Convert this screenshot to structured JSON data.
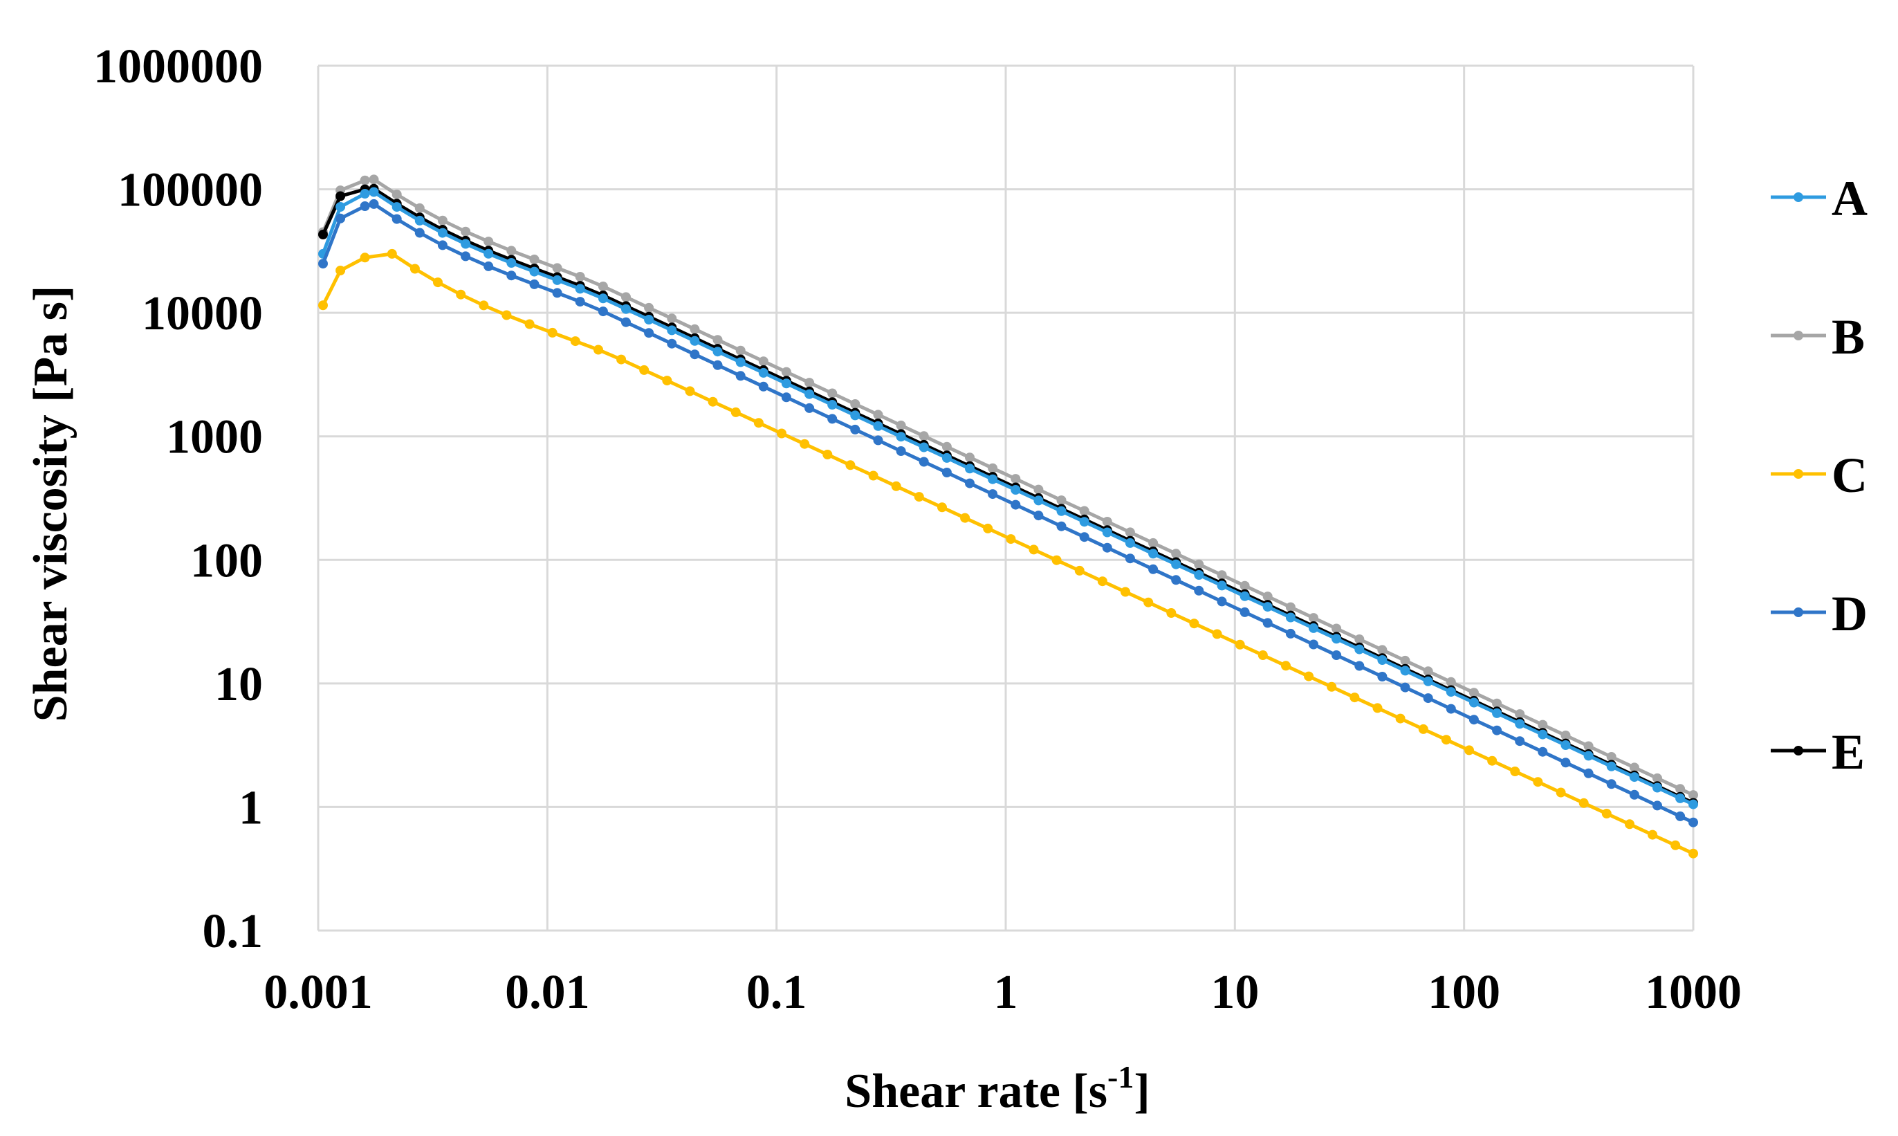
{
  "chart_data": {
    "type": "line",
    "title": "",
    "xlabel": "Shear rate [s",
    "xlabel_sup": "-1",
    "xlabel_suffix": "]",
    "ylabel": "Shear viscosity [Pa s]",
    "x_scale": "log",
    "y_scale": "log",
    "xlim": [
      0.001,
      1000
    ],
    "ylim": [
      0.1,
      1000000
    ],
    "grid": true,
    "legend_position": "right",
    "x_ticks": [
      {
        "value": 0.001,
        "label": "0.001"
      },
      {
        "value": 0.01,
        "label": "0.01"
      },
      {
        "value": 0.1,
        "label": "0.1"
      },
      {
        "value": 1,
        "label": "1"
      },
      {
        "value": 10,
        "label": "10"
      },
      {
        "value": 100,
        "label": "100"
      },
      {
        "value": 1000,
        "label": "1000"
      }
    ],
    "y_ticks": [
      {
        "value": 0.1,
        "label": "0.1"
      },
      {
        "value": 1,
        "label": "1"
      },
      {
        "value": 10,
        "label": "10"
      },
      {
        "value": 100,
        "label": "100"
      },
      {
        "value": 1000,
        "label": "1000"
      },
      {
        "value": 10000,
        "label": "10000"
      },
      {
        "value": 100000,
        "label": "100000"
      },
      {
        "value": 1000000,
        "label": "1000000"
      }
    ],
    "series": [
      {
        "name": "A",
        "color": "#2e9be0",
        "start": [
          0.00105,
          30000
        ],
        "rise": [
          [
            0.00125,
            72000
          ],
          [
            0.0016,
            92000
          ]
        ],
        "peak": [
          0.00175,
          95000
        ],
        "end": [
          1000,
          1.05
        ]
      },
      {
        "name": "B",
        "color": "#a6a6a6",
        "start": [
          0.00105,
          45000
        ],
        "rise": [
          [
            0.00125,
            98000
          ],
          [
            0.0016,
            118000
          ]
        ],
        "peak": [
          0.00175,
          120000
        ],
        "end": [
          1000,
          1.25
        ]
      },
      {
        "name": "C",
        "color": "#ffc000",
        "start": [
          0.00105,
          11500
        ],
        "rise": [
          [
            0.00125,
            22000
          ],
          [
            0.0016,
            28000
          ]
        ],
        "peak": [
          0.0021,
          30000
        ],
        "end": [
          1000,
          0.42
        ]
      },
      {
        "name": "D",
        "color": "#2f75c8",
        "start": [
          0.00105,
          25000
        ],
        "rise": [
          [
            0.00125,
            58000
          ],
          [
            0.0016,
            73000
          ]
        ],
        "peak": [
          0.00175,
          76000
        ],
        "end": [
          1000,
          0.75
        ]
      },
      {
        "name": "E",
        "color": "#000000",
        "start": [
          0.00105,
          43000
        ],
        "rise": [
          [
            0.00125,
            88000
          ],
          [
            0.0016,
            100000
          ]
        ],
        "peak": [
          0.00175,
          101000
        ],
        "end": [
          1000,
          1.08
        ]
      }
    ]
  }
}
